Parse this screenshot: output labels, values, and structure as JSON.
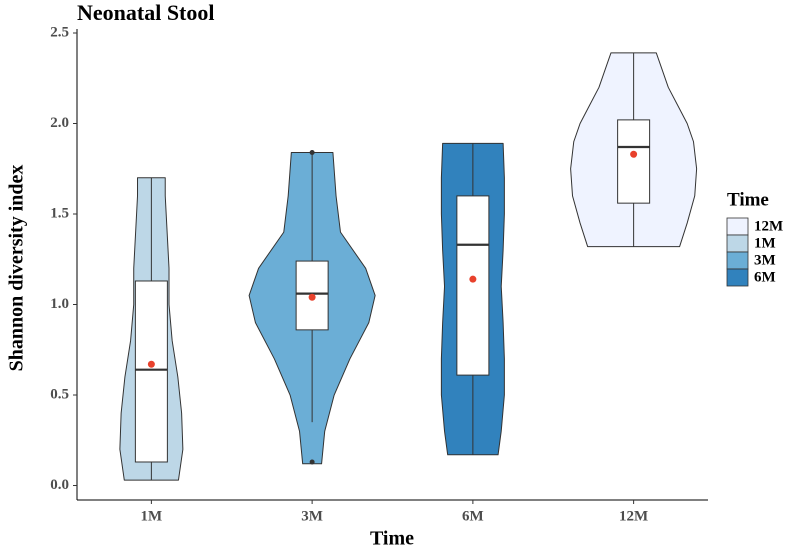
{
  "chart_data": {
    "type": "violin",
    "title": "Neonatal Stool",
    "x_label": "Time",
    "y_label": "Shannon diversity index",
    "legend_title": "Time",
    "categories": [
      "1M",
      "3M",
      "6M",
      "12M"
    ],
    "ylim": [
      -0.08,
      2.5
    ],
    "yticks": [
      {
        "value": 0,
        "label": "0.0"
      },
      0.5,
      {
        "value": 1,
        "label": "1.0"
      },
      1.5,
      {
        "value": 2,
        "label": "2.0"
      },
      2.5
    ],
    "series": [
      {
        "name": "12M",
        "color": "#eff3ff",
        "violin": {
          "y": [
            1.32,
            1.45,
            1.6,
            1.75,
            1.9,
            2.0,
            2.1,
            2.2,
            2.3,
            2.39
          ],
          "density": [
            0.73,
            0.85,
            0.97,
            1.0,
            0.95,
            0.85,
            0.7,
            0.55,
            0.45,
            0.36
          ]
        },
        "box": {
          "min": 1.32,
          "q1": 1.56,
          "median": 1.87,
          "q3": 2.02,
          "max": 2.39
        },
        "mean": 1.83,
        "outliers": []
      },
      {
        "name": "1M",
        "color": "#bdd7e7",
        "violin": {
          "y": [
            0.03,
            0.2,
            0.4,
            0.6,
            0.8,
            1.0,
            1.2,
            1.4,
            1.6,
            1.7
          ],
          "density": [
            0.43,
            0.5,
            0.48,
            0.42,
            0.33,
            0.28,
            0.28,
            0.25,
            0.22,
            0.22
          ]
        },
        "box": {
          "min": 0.03,
          "q1": 0.13,
          "median": 0.64,
          "q3": 1.13,
          "max": 1.7
        },
        "mean": 0.67,
        "outliers": []
      },
      {
        "name": "3M",
        "color": "#6baed6",
        "violin": {
          "y": [
            0.12,
            0.3,
            0.5,
            0.7,
            0.9,
            1.05,
            1.2,
            1.4,
            1.6,
            1.84
          ],
          "density": [
            0.15,
            0.2,
            0.35,
            0.6,
            0.9,
            1.0,
            0.85,
            0.45,
            0.38,
            0.33
          ]
        },
        "box": {
          "min": 0.35,
          "q1": 0.86,
          "median": 1.06,
          "q3": 1.24,
          "max": 1.84
        },
        "mean": 1.04,
        "outliers": [
          0.13,
          1.84
        ]
      },
      {
        "name": "6M",
        "color": "#3182bd",
        "violin": {
          "y": [
            0.17,
            0.3,
            0.5,
            0.7,
            0.9,
            1.1,
            1.3,
            1.5,
            1.7,
            1.89
          ],
          "density": [
            0.4,
            0.45,
            0.5,
            0.5,
            0.48,
            0.45,
            0.48,
            0.5,
            0.5,
            0.48
          ]
        },
        "box": {
          "min": 0.17,
          "q1": 0.61,
          "median": 1.33,
          "q3": 1.6,
          "max": 1.89
        },
        "mean": 1.14,
        "outliers": []
      }
    ]
  }
}
